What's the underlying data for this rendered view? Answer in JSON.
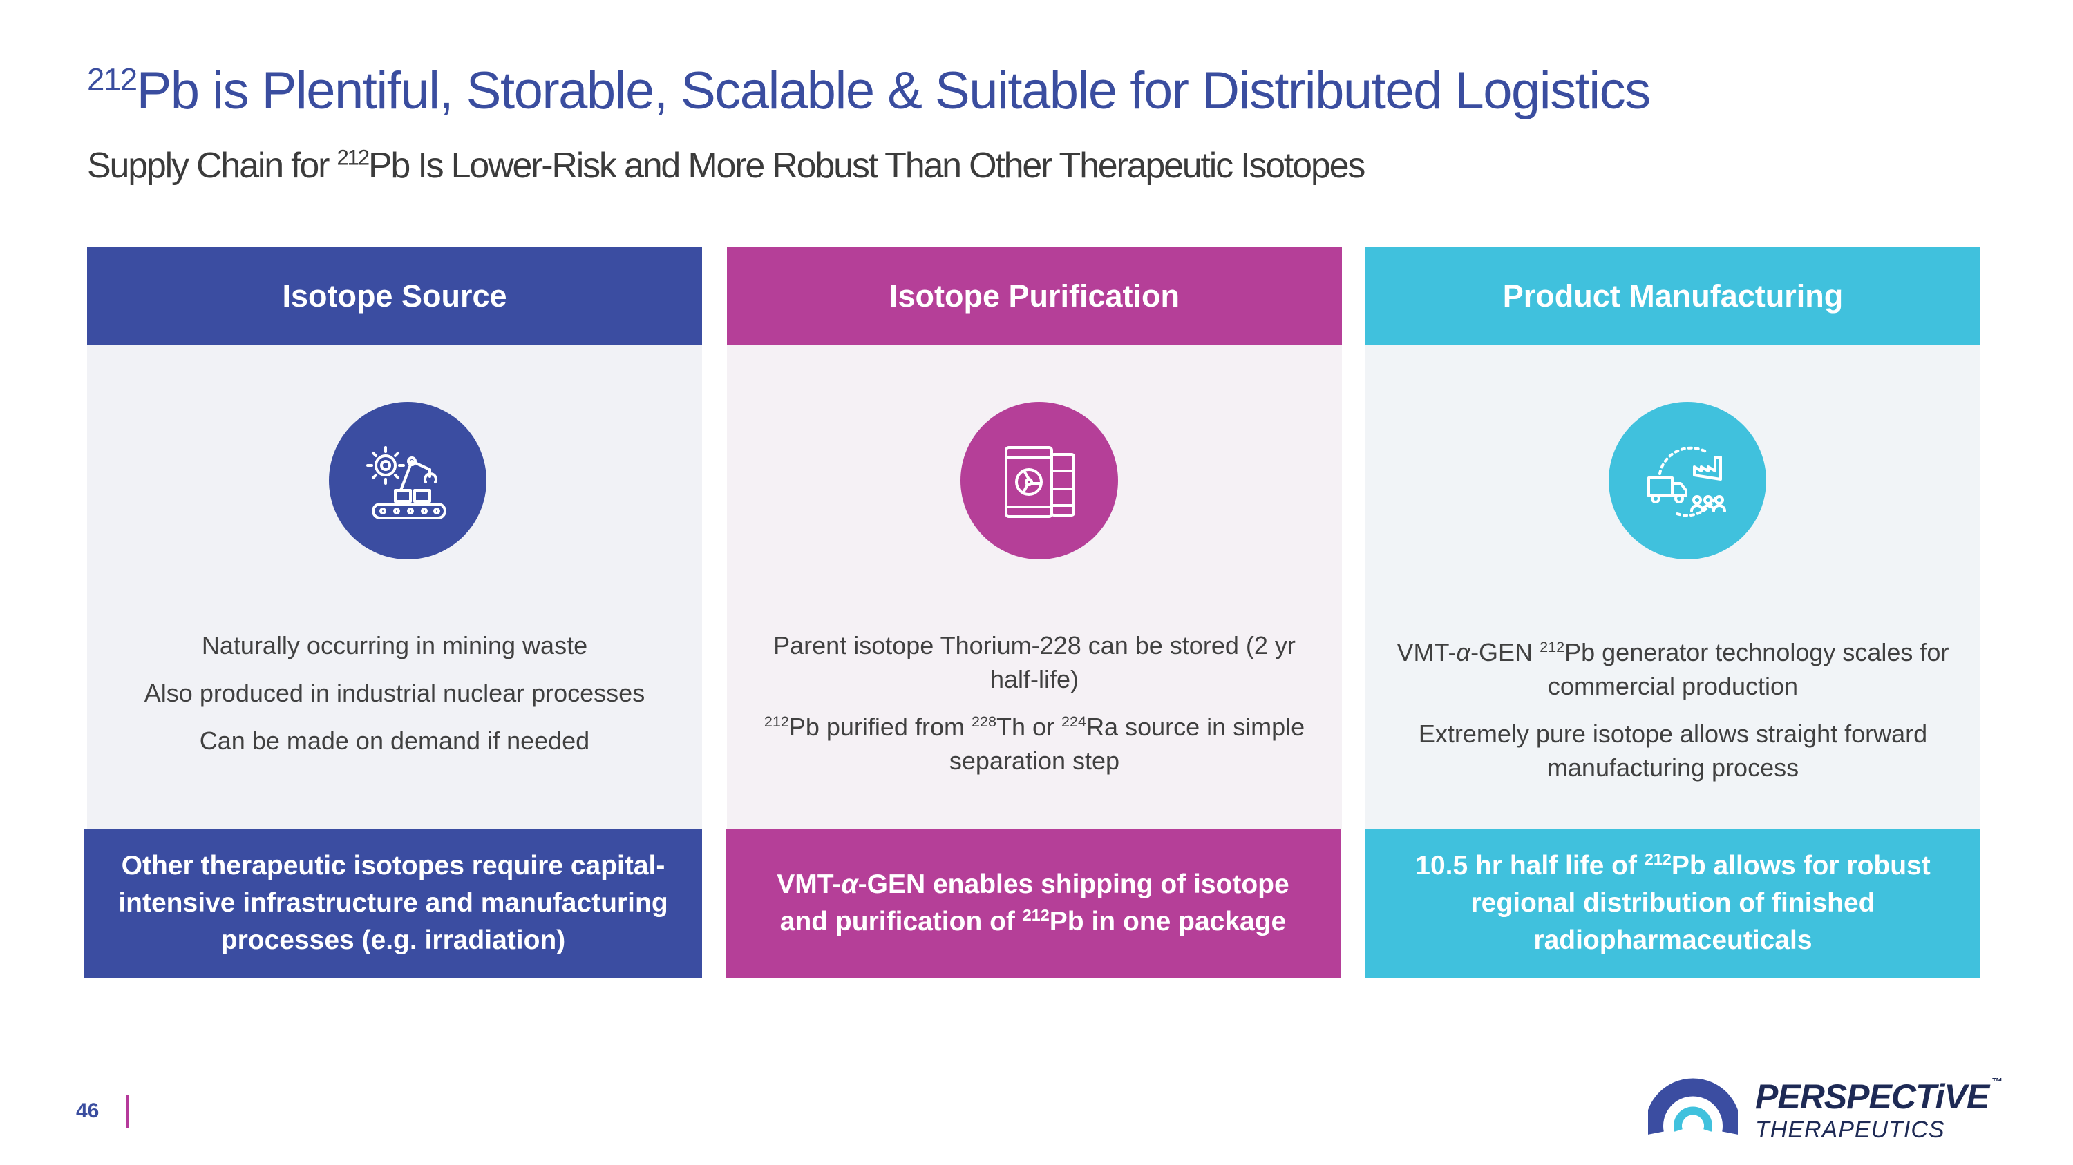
{
  "title": {
    "sup": "212",
    "text": "Pb is Plentiful, Storable, Scalable & Suitable for Distributed Logistics"
  },
  "subtitle": {
    "pre": "Supply Chain for ",
    "sup": "212",
    "post": "Pb Is Lower-Risk and More Robust Than Other Therapeutic Isotopes"
  },
  "colors": {
    "blue": "#3b4da1",
    "magenta": "#b53f98",
    "cyan": "#40c1dd",
    "body_bg_blue": "#f1f2f6",
    "body_bg_magenta": "#f5f1f5",
    "body_bg_cyan": "#f1f4f7"
  },
  "columns": [
    {
      "header": "Isotope Source",
      "icon": "robot-arm-conveyor-icon",
      "bullets": [
        "Naturally occurring in mining waste",
        "Also produced in industrial nuclear processes",
        "Can be made on demand if needed"
      ],
      "footer": "Other therapeutic isotopes require capital-intensive infrastructure and manufacturing processes (e.g. irradiation)"
    },
    {
      "header": "Isotope Purification",
      "icon": "radioactive-barrel-icon",
      "bullets": [
        {
          "text": "Parent isotope Thorium-228 can be stored (2 yr half-life)"
        },
        {
          "sup1": "212",
          "t1": "Pb purified from ",
          "sup2": "228",
          "t2": "Th or ",
          "sup3": "224",
          "t3": "Ra source in simple separation step"
        }
      ],
      "footer": {
        "t1": "VMT-",
        "alpha": "α",
        "t2": "-GEN enables shipping of isotope and purification of ",
        "sup": "212",
        "t3": "Pb in one package"
      }
    },
    {
      "header": "Product Manufacturing",
      "icon": "factory-truck-distribution-icon",
      "bullets": [
        {
          "t1": "VMT-",
          "alpha": "α",
          "t2": "-GEN ",
          "sup": "212",
          "t3": "Pb generator technology scales for commercial production"
        },
        {
          "text": "Extremely pure isotope allows straight forward manufacturing process"
        }
      ],
      "footer": {
        "t1": "10.5 hr half life of ",
        "sup": "212",
        "t2": "Pb allows for robust regional distribution of finished radiopharmaceuticals"
      }
    }
  ],
  "page_number": "46",
  "logo": {
    "name": "PERSPECTiVE",
    "tm": "™",
    "sub": "THERAPEUTICS",
    "icon": "perspective-logo-icon"
  }
}
